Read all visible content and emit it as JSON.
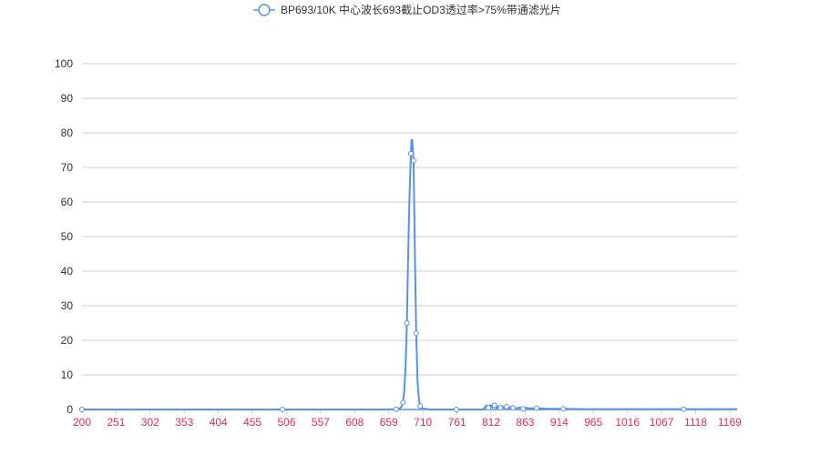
{
  "chart_data": {
    "type": "line",
    "legend": {
      "label": "BP693/10K 中心波长693截止OD3透过率>75%带通滤光片",
      "placement": "top-center"
    },
    "colors": {
      "series": "#5a91e6",
      "axis_labels_x": "#e0325a",
      "axis_labels_y": "#333333",
      "grid": "#cccccc",
      "x_axis_line": "#5a91e6"
    },
    "xlim": [
      200,
      1180
    ],
    "ylim": [
      0,
      100
    ],
    "x_ticks": [
      200,
      251,
      302,
      353,
      404,
      455,
      506,
      557,
      608,
      659,
      710,
      761,
      812,
      863,
      914,
      965,
      1016,
      1067,
      1118,
      1169
    ],
    "y_ticks": [
      0,
      10,
      20,
      30,
      40,
      50,
      60,
      70,
      80,
      90,
      100
    ],
    "grid": true,
    "series": [
      {
        "x": [
          200,
          300,
          400,
          500,
          600,
          650,
          670,
          675,
          678,
          680,
          682,
          684,
          686,
          688,
          690,
          692,
          693,
          694,
          696,
          697,
          698,
          700,
          702,
          704,
          706,
          710,
          720,
          760,
          800,
          805,
          808,
          811,
          814,
          817,
          820,
          823,
          826,
          829,
          832,
          835,
          838,
          841,
          845,
          850,
          855,
          860,
          865,
          870,
          880,
          890,
          900,
          920,
          950,
          1000,
          1100,
          1180
        ],
        "y": [
          0,
          0,
          0,
          0,
          0,
          0,
          0.1,
          0.3,
          0.8,
          2,
          5,
          12,
          25,
          45,
          62,
          74,
          78,
          78,
          72,
          60,
          45,
          22,
          8,
          3,
          1,
          0.3,
          0,
          0,
          0,
          1.2,
          0.5,
          1.3,
          0.6,
          1.2,
          0.4,
          1.0,
          0.5,
          0.9,
          0.4,
          0.8,
          0.3,
          0.7,
          0.5,
          0.3,
          0.6,
          0.2,
          0.5,
          0.3,
          0.4,
          0.3,
          0.2,
          0.2,
          0.1,
          0.1,
          0.1,
          0.1
        ]
      }
    ]
  }
}
